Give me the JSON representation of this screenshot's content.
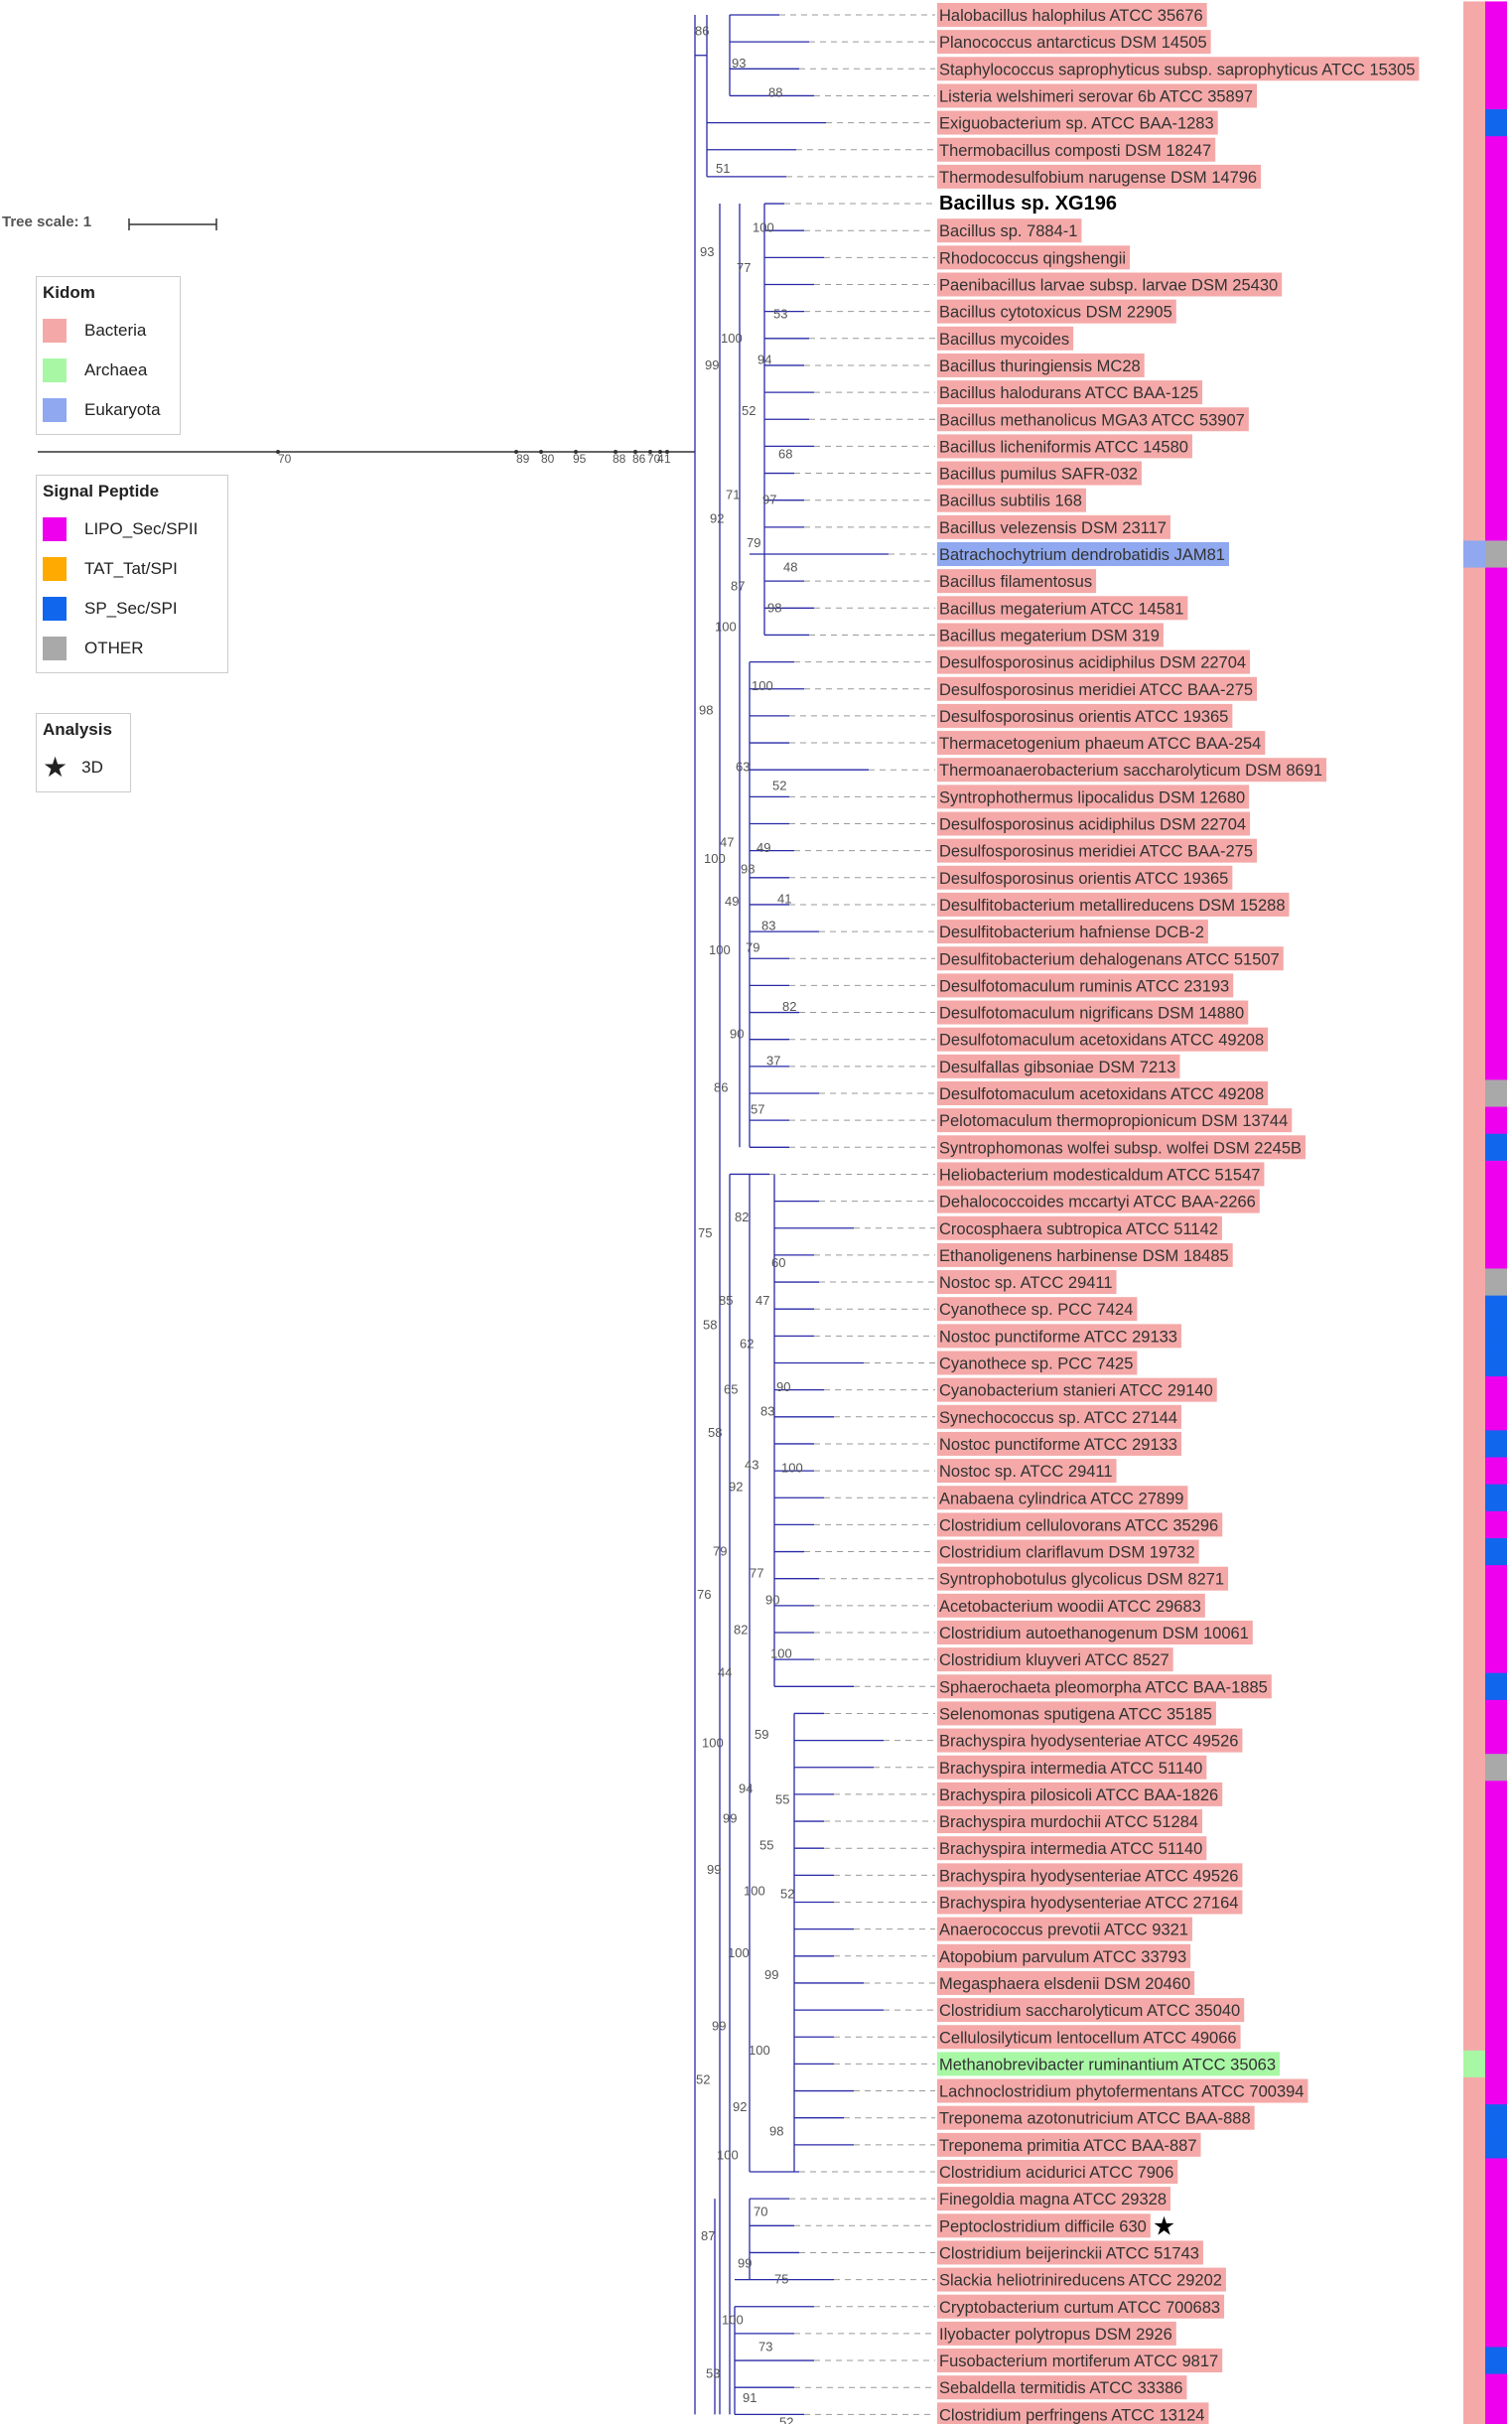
{
  "tree_scale": {
    "label": "Tree scale: 1"
  },
  "legend_kingdom": {
    "title": "Kidom",
    "items": [
      {
        "label": "Bacteria",
        "color": "#f4a9a8"
      },
      {
        "label": "Archaea",
        "color": "#a8f7a4"
      },
      {
        "label": "Eukaryota",
        "color": "#8fa8ef"
      }
    ]
  },
  "legend_signal": {
    "title": "Signal Peptide",
    "items": [
      {
        "label": "LIPO_Sec/SPII",
        "color": "#ee00ee"
      },
      {
        "label": "TAT_Tat/SPI",
        "color": "#ffaa00"
      },
      {
        "label": "SP_Sec/SPI",
        "color": "#1166ee"
      },
      {
        "label": "OTHER",
        "color": "#a9a9a9"
      }
    ]
  },
  "legend_analysis": {
    "title": "Analysis",
    "items": [
      {
        "label": "3D",
        "icon": "star-icon"
      }
    ]
  },
  "colors": {
    "bacteria": "#f4a9a8",
    "archaea": "#a8f7a4",
    "eukaryota": "#8fa8ef",
    "lipo": "#ee00ee",
    "tat": "#ffaa00",
    "sp": "#1166ee",
    "other": "#a9a9a9",
    "branch": "#2a2aa8",
    "dash": "#999999"
  },
  "root_bootstrap": [
    "70",
    "89",
    "80",
    "95",
    "88",
    "86",
    "70",
    "4",
    "1"
  ],
  "leaves": [
    {
      "name": "Halobacillus halophilus ATCC 35676",
      "k": "bacteria",
      "sp": "lipo"
    },
    {
      "name": "Planococcus antarcticus DSM 14505",
      "k": "bacteria",
      "sp": "lipo"
    },
    {
      "name": "Staphylococcus saprophyticus subsp. saprophyticus ATCC 15305",
      "k": "bacteria",
      "sp": "lipo"
    },
    {
      "name": "Listeria welshimeri serovar 6b ATCC 35897",
      "k": "bacteria",
      "sp": "lipo"
    },
    {
      "name": "Exiguobacterium sp. ATCC BAA-1283",
      "k": "bacteria",
      "sp": "sp"
    },
    {
      "name": "Thermobacillus composti DSM 18247",
      "k": "bacteria",
      "sp": "lipo"
    },
    {
      "name": "Thermodesulfobium narugense DSM 14796",
      "k": "bacteria",
      "sp": "lipo"
    },
    {
      "name": "Bacillus sp. XG196",
      "k": "bacteria",
      "sp": "lipo",
      "bold": true
    },
    {
      "name": "Bacillus sp. 7884-1",
      "k": "bacteria",
      "sp": "lipo"
    },
    {
      "name": "Rhodococcus qingshengii",
      "k": "bacteria",
      "sp": "lipo"
    },
    {
      "name": "Paenibacillus larvae subsp. larvae DSM 25430",
      "k": "bacteria",
      "sp": "lipo"
    },
    {
      "name": "Bacillus cytotoxicus DSM 22905",
      "k": "bacteria",
      "sp": "lipo"
    },
    {
      "name": "Bacillus mycoides",
      "k": "bacteria",
      "sp": "lipo"
    },
    {
      "name": "Bacillus thuringiensis MC28",
      "k": "bacteria",
      "sp": "lipo"
    },
    {
      "name": "Bacillus halodurans ATCC BAA-125",
      "k": "bacteria",
      "sp": "lipo"
    },
    {
      "name": "Bacillus methanolicus MGA3 ATCC 53907",
      "k": "bacteria",
      "sp": "lipo"
    },
    {
      "name": "Bacillus licheniformis ATCC 14580",
      "k": "bacteria",
      "sp": "lipo"
    },
    {
      "name": "Bacillus pumilus SAFR-032",
      "k": "bacteria",
      "sp": "lipo"
    },
    {
      "name": "Bacillus subtilis 168",
      "k": "bacteria",
      "sp": "lipo"
    },
    {
      "name": "Bacillus velezensis DSM 23117",
      "k": "bacteria",
      "sp": "lipo"
    },
    {
      "name": "Batrachochytrium dendrobatidis JAM81",
      "k": "eukaryota",
      "sp": "other"
    },
    {
      "name": "Bacillus filamentosus",
      "k": "bacteria",
      "sp": "lipo"
    },
    {
      "name": "Bacillus megaterium ATCC 14581",
      "k": "bacteria",
      "sp": "lipo"
    },
    {
      "name": "Bacillus megaterium DSM 319",
      "k": "bacteria",
      "sp": "lipo"
    },
    {
      "name": "Desulfosporosinus acidiphilus DSM 22704",
      "k": "bacteria",
      "sp": "lipo"
    },
    {
      "name": "Desulfosporosinus meridiei ATCC BAA-275",
      "k": "bacteria",
      "sp": "lipo"
    },
    {
      "name": "Desulfosporosinus orientis ATCC 19365",
      "k": "bacteria",
      "sp": "lipo"
    },
    {
      "name": "Thermacetogenium phaeum ATCC BAA-254",
      "k": "bacteria",
      "sp": "lipo"
    },
    {
      "name": "Thermoanaerobacterium saccharolyticum DSM 8691",
      "k": "bacteria",
      "sp": "lipo"
    },
    {
      "name": "Syntrophothermus lipocalidus DSM 12680",
      "k": "bacteria",
      "sp": "lipo"
    },
    {
      "name": "Desulfosporosinus acidiphilus DSM 22704",
      "k": "bacteria",
      "sp": "lipo"
    },
    {
      "name": "Desulfosporosinus meridiei ATCC BAA-275",
      "k": "bacteria",
      "sp": "lipo"
    },
    {
      "name": "Desulfosporosinus orientis ATCC 19365",
      "k": "bacteria",
      "sp": "lipo"
    },
    {
      "name": "Desulfitobacterium metallireducens DSM 15288",
      "k": "bacteria",
      "sp": "lipo"
    },
    {
      "name": "Desulfitobacterium hafniense DCB-2",
      "k": "bacteria",
      "sp": "lipo"
    },
    {
      "name": "Desulfitobacterium dehalogenans ATCC 51507",
      "k": "bacteria",
      "sp": "lipo"
    },
    {
      "name": "Desulfotomaculum ruminis ATCC 23193",
      "k": "bacteria",
      "sp": "lipo"
    },
    {
      "name": "Desulfotomaculum nigrificans DSM 14880",
      "k": "bacteria",
      "sp": "lipo"
    },
    {
      "name": "Desulfotomaculum acetoxidans ATCC 49208",
      "k": "bacteria",
      "sp": "lipo"
    },
    {
      "name": "Desulfallas gibsoniae DSM 7213",
      "k": "bacteria",
      "sp": "lipo"
    },
    {
      "name": "Desulfotomaculum acetoxidans ATCC 49208",
      "k": "bacteria",
      "sp": "other"
    },
    {
      "name": "Pelotomaculum thermopropionicum DSM 13744",
      "k": "bacteria",
      "sp": "lipo"
    },
    {
      "name": "Syntrophomonas wolfei subsp. wolfei DSM 2245B",
      "k": "bacteria",
      "sp": "sp"
    },
    {
      "name": "Heliobacterium modesticaldum ATCC 51547",
      "k": "bacteria",
      "sp": "lipo"
    },
    {
      "name": "Dehalococcoides mccartyi ATCC BAA-2266",
      "k": "bacteria",
      "sp": "lipo"
    },
    {
      "name": "Crocosphaera subtropica ATCC 51142",
      "k": "bacteria",
      "sp": "lipo"
    },
    {
      "name": "Ethanoligenens harbinense DSM 18485",
      "k": "bacteria",
      "sp": "lipo"
    },
    {
      "name": "Nostoc sp. ATCC 29411",
      "k": "bacteria",
      "sp": "other"
    },
    {
      "name": "Cyanothece sp. PCC 7424",
      "k": "bacteria",
      "sp": "sp"
    },
    {
      "name": "Nostoc punctiforme ATCC 29133",
      "k": "bacteria",
      "sp": "sp"
    },
    {
      "name": "Cyanothece sp. PCC 7425",
      "k": "bacteria",
      "sp": "sp"
    },
    {
      "name": "Cyanobacterium stanieri ATCC 29140",
      "k": "bacteria",
      "sp": "lipo"
    },
    {
      "name": "Synechococcus sp. ATCC 27144",
      "k": "bacteria",
      "sp": "lipo"
    },
    {
      "name": "Nostoc punctiforme ATCC 29133",
      "k": "bacteria",
      "sp": "sp"
    },
    {
      "name": "Nostoc sp. ATCC 29411",
      "k": "bacteria",
      "sp": "lipo"
    },
    {
      "name": "Anabaena cylindrica ATCC 27899",
      "k": "bacteria",
      "sp": "sp"
    },
    {
      "name": "Clostridium cellulovorans ATCC 35296",
      "k": "bacteria",
      "sp": "lipo"
    },
    {
      "name": "Clostridium clariflavum DSM 19732",
      "k": "bacteria",
      "sp": "sp"
    },
    {
      "name": "Syntrophobotulus glycolicus DSM 8271",
      "k": "bacteria",
      "sp": "lipo"
    },
    {
      "name": "Acetobacterium woodii ATCC 29683",
      "k": "bacteria",
      "sp": "lipo"
    },
    {
      "name": "Clostridium autoethanogenum DSM 10061",
      "k": "bacteria",
      "sp": "lipo"
    },
    {
      "name": "Clostridium kluyveri ATCC 8527",
      "k": "bacteria",
      "sp": "lipo"
    },
    {
      "name": "Sphaerochaeta pleomorpha ATCC BAA-1885",
      "k": "bacteria",
      "sp": "sp"
    },
    {
      "name": "Selenomonas sputigena ATCC 35185",
      "k": "bacteria",
      "sp": "lipo"
    },
    {
      "name": "Brachyspira hyodysenteriae ATCC 49526",
      "k": "bacteria",
      "sp": "lipo"
    },
    {
      "name": "Brachyspira intermedia ATCC 51140",
      "k": "bacteria",
      "sp": "other"
    },
    {
      "name": "Brachyspira pilosicoli ATCC BAA-1826",
      "k": "bacteria",
      "sp": "lipo"
    },
    {
      "name": "Brachyspira murdochii ATCC 51284",
      "k": "bacteria",
      "sp": "lipo"
    },
    {
      "name": "Brachyspira intermedia ATCC 51140",
      "k": "bacteria",
      "sp": "lipo"
    },
    {
      "name": "Brachyspira hyodysenteriae ATCC 49526",
      "k": "bacteria",
      "sp": "lipo"
    },
    {
      "name": "Brachyspira hyodysenteriae ATCC 27164",
      "k": "bacteria",
      "sp": "lipo"
    },
    {
      "name": "Anaerococcus prevotii ATCC 9321",
      "k": "bacteria",
      "sp": "lipo"
    },
    {
      "name": "Atopobium parvulum ATCC 33793",
      "k": "bacteria",
      "sp": "lipo"
    },
    {
      "name": "Megasphaera elsdenii DSM 20460",
      "k": "bacteria",
      "sp": "lipo"
    },
    {
      "name": "Clostridium saccharolyticum ATCC 35040",
      "k": "bacteria",
      "sp": "lipo"
    },
    {
      "name": "Cellulosilyticum lentocellum ATCC 49066",
      "k": "bacteria",
      "sp": "lipo"
    },
    {
      "name": "Methanobrevibacter ruminantium ATCC 35063",
      "k": "archaea",
      "sp": "lipo"
    },
    {
      "name": "Lachnoclostridium phytofermentans ATCC 700394",
      "k": "bacteria",
      "sp": "lipo"
    },
    {
      "name": "Treponema azotonutricium ATCC BAA-888",
      "k": "bacteria",
      "sp": "sp"
    },
    {
      "name": "Treponema primitia ATCC BAA-887",
      "k": "bacteria",
      "sp": "sp"
    },
    {
      "name": "Clostridium acidurici ATCC 7906",
      "k": "bacteria",
      "sp": "lipo"
    },
    {
      "name": "Finegoldia magna ATCC 29328",
      "k": "bacteria",
      "sp": "lipo"
    },
    {
      "name": "Peptoclostridium difficile 630",
      "k": "bacteria",
      "sp": "lipo",
      "star": true
    },
    {
      "name": "Clostridium beijerinckii ATCC 51743",
      "k": "bacteria",
      "sp": "lipo"
    },
    {
      "name": "Slackia heliotrinireducens ATCC 29202",
      "k": "bacteria",
      "sp": "lipo"
    },
    {
      "name": "Cryptobacterium curtum ATCC 700683",
      "k": "bacteria",
      "sp": "lipo"
    },
    {
      "name": "Ilyobacter polytropus DSM 2926",
      "k": "bacteria",
      "sp": "lipo"
    },
    {
      "name": "Fusobacterium mortiferum ATCC 9817",
      "k": "bacteria",
      "sp": "sp"
    },
    {
      "name": "Sebaldella termitidis ATCC 33386",
      "k": "bacteria",
      "sp": "lipo"
    },
    {
      "name": "Clostridium perfringens ATCC 13124",
      "k": "bacteria",
      "sp": "lipo"
    }
  ],
  "bootstrap_labels": [
    {
      "t": "86",
      "row": 0.6
    },
    {
      "t": "93",
      "row": 1.8
    },
    {
      "t": "88",
      "row": 2.9
    },
    {
      "t": "51",
      "row": 5.7
    },
    {
      "t": "100",
      "row": 7.9
    },
    {
      "t": "93",
      "row": 8.8
    },
    {
      "t": "77",
      "row": 9.4
    },
    {
      "t": "53",
      "row": 11.1
    },
    {
      "t": "100",
      "row": 12.0
    },
    {
      "t": "94",
      "row": 12.8
    },
    {
      "t": "99",
      "row": 13.0
    },
    {
      "t": "52",
      "row": 14.7
    },
    {
      "t": "68",
      "row": 16.3
    },
    {
      "t": "71",
      "row": 17.8
    },
    {
      "t": "97",
      "row": 18.0
    },
    {
      "t": "92",
      "row": 18.7
    },
    {
      "t": "79",
      "row": 19.6
    },
    {
      "t": "48",
      "row": 20.5
    },
    {
      "t": "87",
      "row": 21.2
    },
    {
      "t": "98",
      "row": 22.0
    },
    {
      "t": "100",
      "row": 22.7
    },
    {
      "t": "100",
      "row": 24.9
    },
    {
      "t": "98",
      "row": 25.8
    },
    {
      "t": "63",
      "row": 27.9
    },
    {
      "t": "52",
      "row": 28.6
    },
    {
      "t": "47",
      "row": 30.7
    },
    {
      "t": "49",
      "row": 30.9
    },
    {
      "t": "100",
      "row": 31.3
    },
    {
      "t": "98",
      "row": 31.7
    },
    {
      "t": "41",
      "row": 32.8
    },
    {
      "t": "49",
      "row": 32.9
    },
    {
      "t": "83",
      "row": 33.8
    },
    {
      "t": "100",
      "row": 34.7
    },
    {
      "t": "79",
      "row": 34.6
    },
    {
      "t": "82",
      "row": 36.8
    },
    {
      "t": "90",
      "row": 37.8
    },
    {
      "t": "37",
      "row": 38.8
    },
    {
      "t": "86",
      "row": 39.8
    },
    {
      "t": "57",
      "row": 40.6
    },
    {
      "t": "75",
      "row": 45.2
    },
    {
      "t": "82",
      "row": 44.6
    },
    {
      "t": "60",
      "row": 46.3
    },
    {
      "t": "85",
      "row": 47.7
    },
    {
      "t": "47",
      "row": 47.7
    },
    {
      "t": "58",
      "row": 48.6
    },
    {
      "t": "62",
      "row": 49.3
    },
    {
      "t": "90",
      "row": 50.9
    },
    {
      "t": "65",
      "row": 51.0
    },
    {
      "t": "83",
      "row": 51.8
    },
    {
      "t": "58",
      "row": 52.6
    },
    {
      "t": "43",
      "row": 53.8
    },
    {
      "t": "100",
      "row": 53.9
    },
    {
      "t": "92",
      "row": 54.6
    },
    {
      "t": "90",
      "row": 58.8
    },
    {
      "t": "79",
      "row": 57.0
    },
    {
      "t": "77",
      "row": 57.8
    },
    {
      "t": "76",
      "row": 58.6
    },
    {
      "t": "82",
      "row": 59.9
    },
    {
      "t": "100",
      "row": 60.8
    },
    {
      "t": "44",
      "row": 61.5
    },
    {
      "t": "59",
      "row": 63.8
    },
    {
      "t": "100",
      "row": 64.1
    },
    {
      "t": "94",
      "row": 65.8
    },
    {
      "t": "55",
      "row": 66.2
    },
    {
      "t": "99",
      "row": 66.9
    },
    {
      "t": "55",
      "row": 67.9
    },
    {
      "t": "99",
      "row": 68.8
    },
    {
      "t": "100",
      "row": 69.6
    },
    {
      "t": "52",
      "row": 69.7
    },
    {
      "t": "100",
      "row": 71.9
    },
    {
      "t": "99",
      "row": 72.7
    },
    {
      "t": "99",
      "row": 74.6
    },
    {
      "t": "100",
      "row": 75.5
    },
    {
      "t": "52",
      "row": 76.6
    },
    {
      "t": "92",
      "row": 77.6
    },
    {
      "t": "98",
      "row": 78.5
    },
    {
      "t": "100",
      "row": 79.4
    },
    {
      "t": "70",
      "row": 81.5
    },
    {
      "t": "87",
      "row": 82.4
    },
    {
      "t": "99",
      "row": 83.4
    },
    {
      "t": "75",
      "row": 84.0
    },
    {
      "t": "100",
      "row": 85.5
    },
    {
      "t": "73",
      "row": 86.5
    },
    {
      "t": "53",
      "row": 87.5
    },
    {
      "t": "91",
      "row": 88.4
    },
    {
      "t": "52",
      "row": 89.3
    }
  ]
}
